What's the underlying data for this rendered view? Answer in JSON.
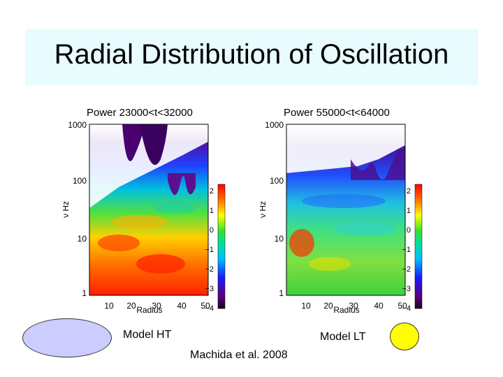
{
  "slide": {
    "title": "Radial Distribution of Oscillation",
    "model_ht_label": "Model HT",
    "model_lt_label": "Model LT",
    "citation": "Machida et al. 2008"
  },
  "colors": {
    "title_bg": "#e8fbff",
    "ellipse_left": "#ccccff",
    "ellipse_right": "#ffff00"
  },
  "chart_data": [
    {
      "type": "heatmap",
      "title": "Power  23000<t<32000",
      "xlabel": "Radius",
      "ylabel": "ν Hz",
      "xlim": [
        5,
        50
      ],
      "ylim": [
        1,
        1000
      ],
      "yscale": "log",
      "x_ticks": [
        "10",
        "20",
        "30",
        "40",
        "50"
      ],
      "y_ticks": [
        "1000",
        "100",
        "10",
        "1"
      ],
      "colorbar": {
        "ticks": [
          "2",
          "1",
          "0",
          "−1",
          "−2",
          "−3",
          "−4"
        ],
        "range": [
          -4,
          2.5
        ]
      }
    },
    {
      "type": "heatmap",
      "title": "Power  55000<t<64000",
      "xlabel": "Radius",
      "ylabel": "ν Hz",
      "xlim": [
        5,
        50
      ],
      "ylim": [
        1,
        1000
      ],
      "yscale": "log",
      "x_ticks": [
        "10",
        "20",
        "30",
        "40",
        "50"
      ],
      "y_ticks": [
        "1000",
        "100",
        "10",
        "1"
      ],
      "colorbar": {
        "ticks": [
          "2",
          "1",
          "0",
          "−1",
          "−2",
          "−3",
          "−4"
        ],
        "range": [
          -4,
          2.5
        ]
      }
    }
  ]
}
